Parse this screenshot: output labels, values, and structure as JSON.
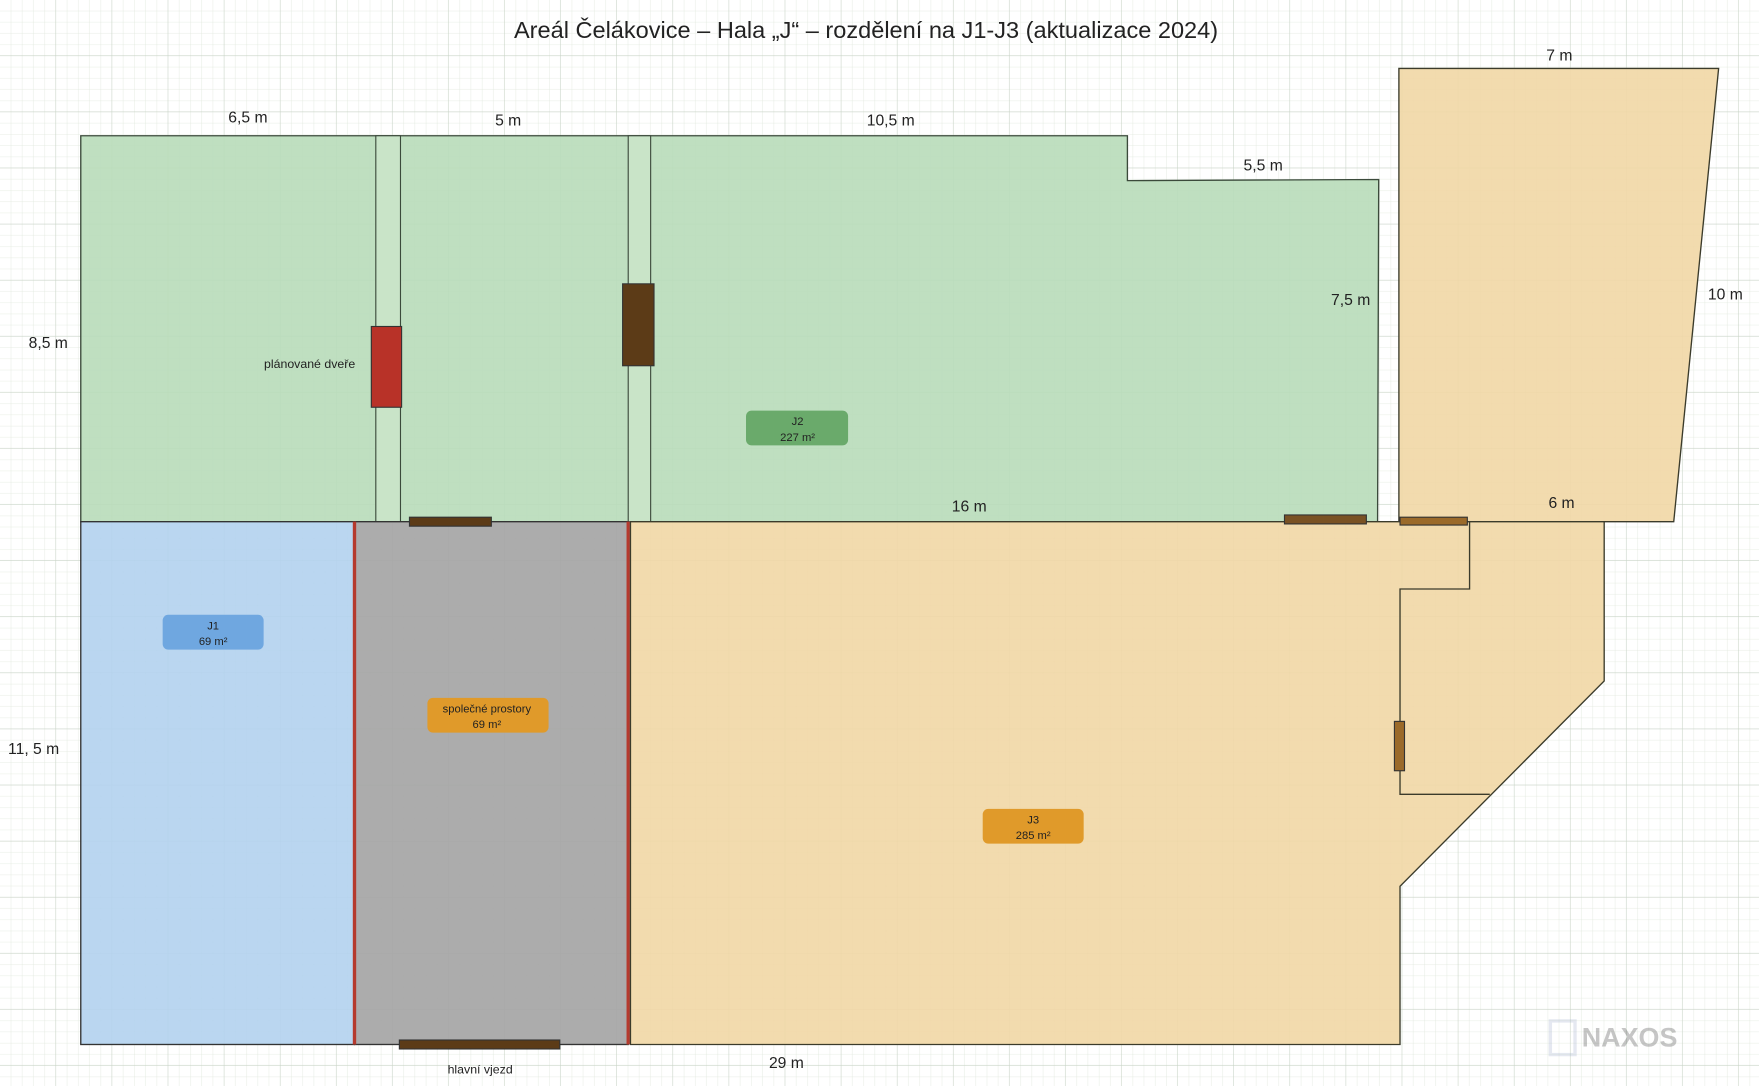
{
  "title": "Areál Čelákovice – Hala „J“ – rozdělení na J1-J3 (aktualizace 2024)",
  "dimensions": {
    "top_left": "6,5 m",
    "top_mid": "5 m",
    "top_right": "10,5 m",
    "step": "5,5 m",
    "right_green": "7,5 m",
    "annex_top": "7 m",
    "annex_right": "10 m",
    "annex_bottom": "6 m",
    "left_upper": "8,5 m",
    "left_lower": "11, 5 m",
    "middle": "16 m",
    "bottom": "29 m"
  },
  "rooms": {
    "j1": {
      "name": "J1",
      "area": "69 m²",
      "color": "#b3d1ee"
    },
    "j2": {
      "name": "J2",
      "area": "227 m²",
      "color": "#b8dbb9"
    },
    "j3": {
      "name": "J3",
      "area": "285 m²",
      "color": "#f1d7a5"
    },
    "common": {
      "name": "společné prostory",
      "area": "69 m²",
      "color": "#a5a5a5"
    }
  },
  "labels": {
    "planned_door": "plánované dveře",
    "main_entrance": "hlavní vjezd"
  },
  "watermark": "NAXOS"
}
